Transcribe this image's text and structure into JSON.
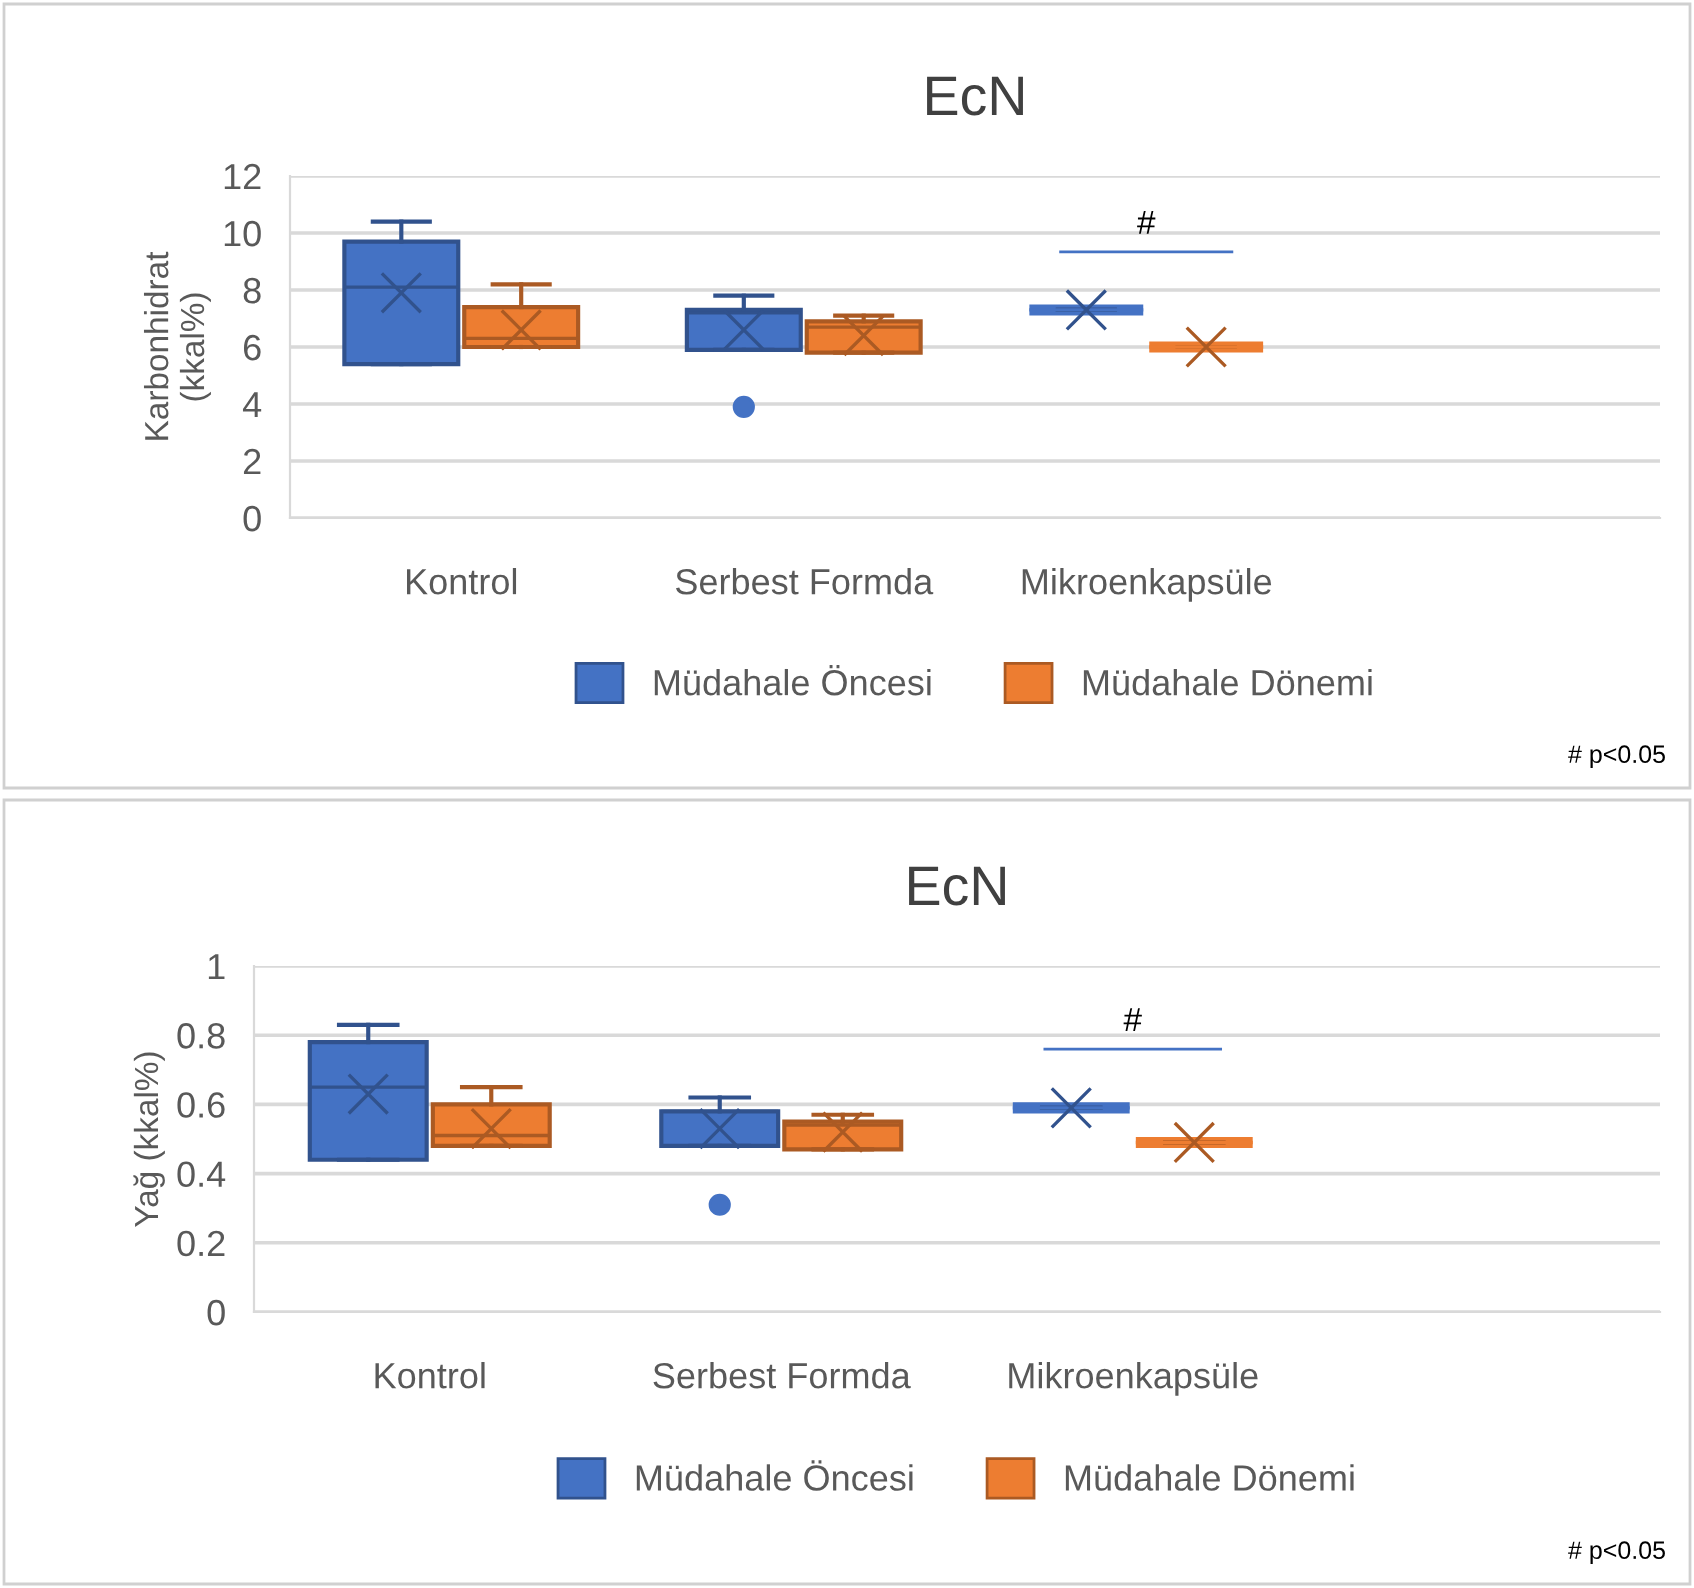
{
  "chart_data": [
    {
      "type": "box",
      "title": "EcN",
      "ylabel": "Karbonhidrat\n(kkal%)",
      "categories": [
        "Kontrol",
        "Serbest Formda",
        "Mikroenkapsüle",
        null
      ],
      "ylim": [
        0,
        12
      ],
      "yticks": [
        0,
        2,
        4,
        6,
        8,
        10,
        12
      ],
      "grid": "y",
      "legend": "bottom",
      "series": [
        {
          "name": "Müdahale Öncesi",
          "color": "#4472c4",
          "boxes": [
            {
              "low": 5.4,
              "q1": 5.4,
              "median": 8.1,
              "q3": 9.7,
              "high": 10.4,
              "mean": 7.9
            },
            {
              "low": 5.9,
              "q1": 5.9,
              "median": 7.2,
              "q3": 7.3,
              "high": 7.8,
              "mean": 6.6,
              "outliers": [
                3.9
              ]
            },
            {
              "low": 7.3,
              "q1": 7.3,
              "median": 7.3,
              "q3": 7.3,
              "high": 7.3,
              "mean": 7.3
            },
            null
          ]
        },
        {
          "name": "Müdahale Dönemi",
          "color": "#ed7d31",
          "boxes": [
            {
              "low": 6.0,
              "q1": 6.0,
              "median": 6.3,
              "q3": 7.4,
              "high": 8.2,
              "mean": 6.6
            },
            {
              "low": 5.8,
              "q1": 5.8,
              "median": 6.7,
              "q3": 6.9,
              "high": 7.1,
              "mean": 6.4
            },
            {
              "low": 6.0,
              "q1": 6.0,
              "median": 6.0,
              "q3": 6.0,
              "high": 6.0,
              "mean": 6.0
            },
            null
          ]
        }
      ],
      "annotations": [
        "#",
        "# p<0.05"
      ]
    },
    {
      "type": "box",
      "title": "EcN",
      "ylabel": "Yağ (kkal%)",
      "categories": [
        "Kontrol",
        "Serbest Formda",
        "Mikroenkapsüle",
        null
      ],
      "ylim": [
        0,
        1
      ],
      "yticks": [
        0,
        0.2,
        0.4,
        0.6,
        0.8,
        1
      ],
      "grid": "y",
      "legend": "bottom",
      "series": [
        {
          "name": "Müdahale Öncesi",
          "color": "#4472c4",
          "boxes": [
            {
              "low": 0.44,
              "q1": 0.44,
              "median": 0.65,
              "q3": 0.78,
              "high": 0.83,
              "mean": 0.63
            },
            {
              "low": 0.48,
              "q1": 0.48,
              "median": 0.58,
              "q3": 0.58,
              "high": 0.62,
              "mean": 0.53,
              "outliers": [
                0.31
              ]
            },
            {
              "low": 0.59,
              "q1": 0.59,
              "median": 0.59,
              "q3": 0.59,
              "high": 0.59,
              "mean": 0.59
            },
            null
          ]
        },
        {
          "name": "Müdahale Dönemi",
          "color": "#ed7d31",
          "boxes": [
            {
              "low": 0.48,
              "q1": 0.48,
              "median": 0.51,
              "q3": 0.6,
              "high": 0.65,
              "mean": 0.53
            },
            {
              "low": 0.47,
              "q1": 0.47,
              "median": 0.54,
              "q3": 0.55,
              "high": 0.57,
              "mean": 0.52
            },
            {
              "low": 0.49,
              "q1": 0.49,
              "median": 0.49,
              "q3": 0.49,
              "high": 0.49,
              "mean": 0.49
            },
            null
          ]
        }
      ],
      "annotations": [
        "#",
        "# p<0.05"
      ]
    }
  ]
}
